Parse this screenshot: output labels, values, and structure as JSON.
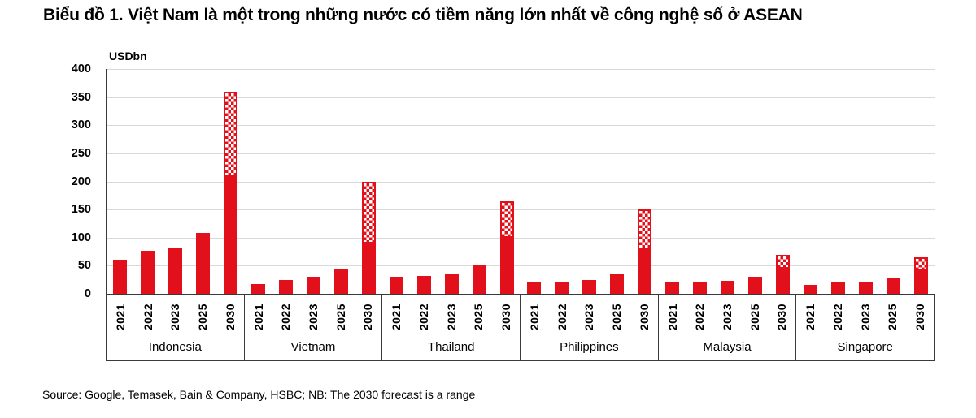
{
  "title": "Biểu đồ 1. Việt Nam là một trong những nước có tiềm năng lớn nhất về công nghệ số ở ASEAN",
  "source_note": "Source: Google, Temasek, Bain & Company, HSBC; NB: The 2030 forecast is a range",
  "chart_data": {
    "type": "bar",
    "unit_label": "USDbn",
    "ylim": [
      0,
      400
    ],
    "ytick_step": 50,
    "yticks": [
      0,
      50,
      100,
      150,
      200,
      250,
      300,
      350,
      400
    ],
    "grid": true,
    "legend": "none",
    "categories": [
      "2021",
      "2022",
      "2023",
      "2025",
      "2030"
    ],
    "range_note": "2030 bars are a forecast range: solid segment = low estimate, checkered segment extends to high estimate",
    "colors": {
      "bar": "#e2101a",
      "grid": "#d9d9d9",
      "axis": "#3a3a3a",
      "hatch_background": "#ffffff"
    },
    "groups": [
      {
        "country": "Indonesia",
        "values": [
          61,
          76,
          82,
          109,
          [
            210,
            360
          ]
        ]
      },
      {
        "country": "Vietnam",
        "values": [
          18,
          25,
          30,
          45,
          [
            90,
            200
          ]
        ]
      },
      {
        "country": "Thailand",
        "values": [
          31,
          32,
          36,
          50,
          [
            100,
            165
          ]
        ]
      },
      {
        "country": "Philippines",
        "values": [
          20,
          22,
          24,
          35,
          [
            80,
            150
          ]
        ]
      },
      {
        "country": "Malaysia",
        "values": [
          21,
          22,
          23,
          31,
          [
            45,
            70
          ]
        ]
      },
      {
        "country": "Singapore",
        "values": [
          16,
          20,
          22,
          29,
          [
            40,
            65
          ]
        ]
      }
    ]
  }
}
